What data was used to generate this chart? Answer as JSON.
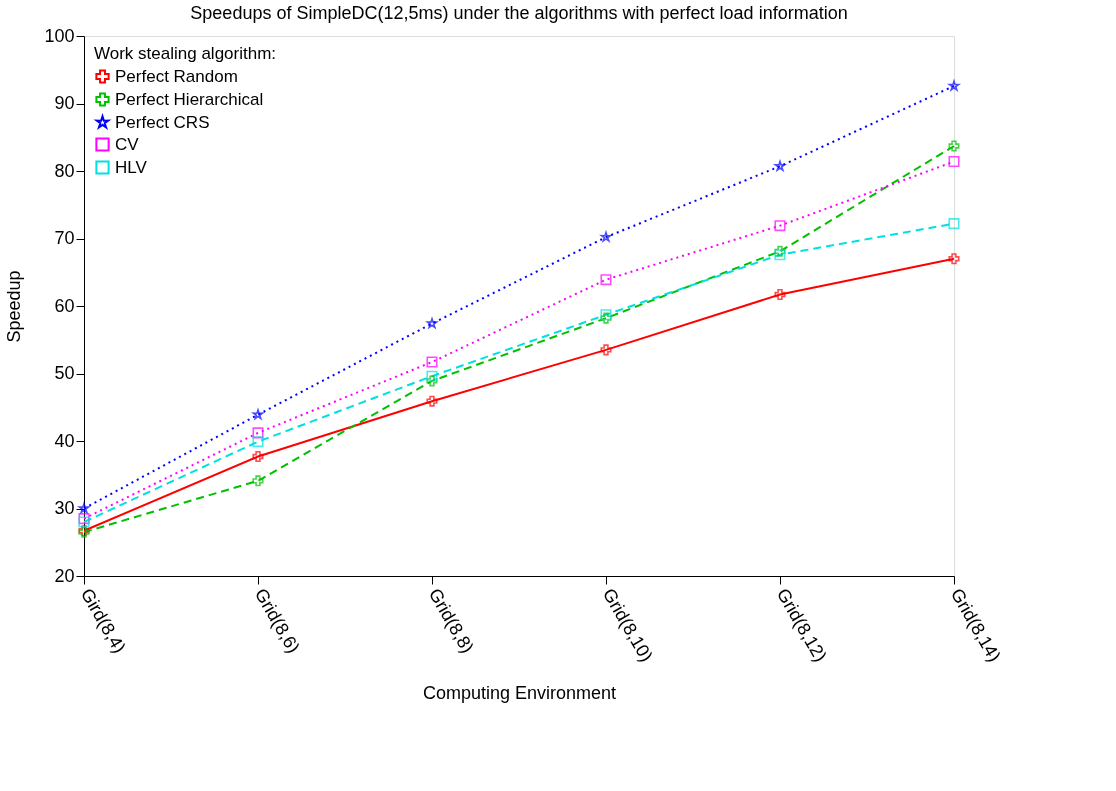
{
  "chart_data": {
    "type": "line",
    "title": "Speedups of SimpleDC(12,5ms) under the algorithms with perfect load information",
    "xlabel": "Computing Environment",
    "ylabel": "Speedup",
    "legend_title": "Work stealing algorithm:",
    "legend": "top left",
    "grid": false,
    "categories": [
      "Gird(8,4)",
      "Grid(8,6)",
      "Grid(8,8)",
      "Grid(8,10)",
      "Grid(8,12)",
      "Grid(8,14)"
    ],
    "ylim": [
      20,
      100
    ],
    "yticks": [
      20,
      30,
      40,
      50,
      60,
      70,
      80,
      90,
      100
    ],
    "series": [
      {
        "name": "Perfect Random",
        "color": "#ff0000",
        "marker": "cross",
        "line_style": "solid",
        "values": [
          26.7,
          37.7,
          45.9,
          53.5,
          61.7,
          67.0
        ]
      },
      {
        "name": "Perfect Hierarchical",
        "color": "#00c000",
        "marker": "cross",
        "line_style": "dashed",
        "values": [
          26.5,
          34.1,
          48.9,
          58.2,
          68.1,
          83.7
        ]
      },
      {
        "name": "Perfect CRS",
        "color": "#0000ff",
        "marker": "star",
        "line_style": "dotted",
        "values": [
          30.0,
          43.9,
          57.4,
          70.2,
          80.7,
          92.6
        ]
      },
      {
        "name": "CV",
        "color": "#ff00ff",
        "marker": "square",
        "line_style": "dotted",
        "values": [
          28.5,
          41.2,
          51.7,
          63.9,
          71.9,
          81.4
        ]
      },
      {
        "name": "HLV",
        "color": "#00e0e0",
        "marker": "square",
        "line_style": "dashed",
        "values": [
          28.0,
          39.9,
          49.6,
          58.7,
          67.6,
          72.2
        ]
      }
    ]
  }
}
